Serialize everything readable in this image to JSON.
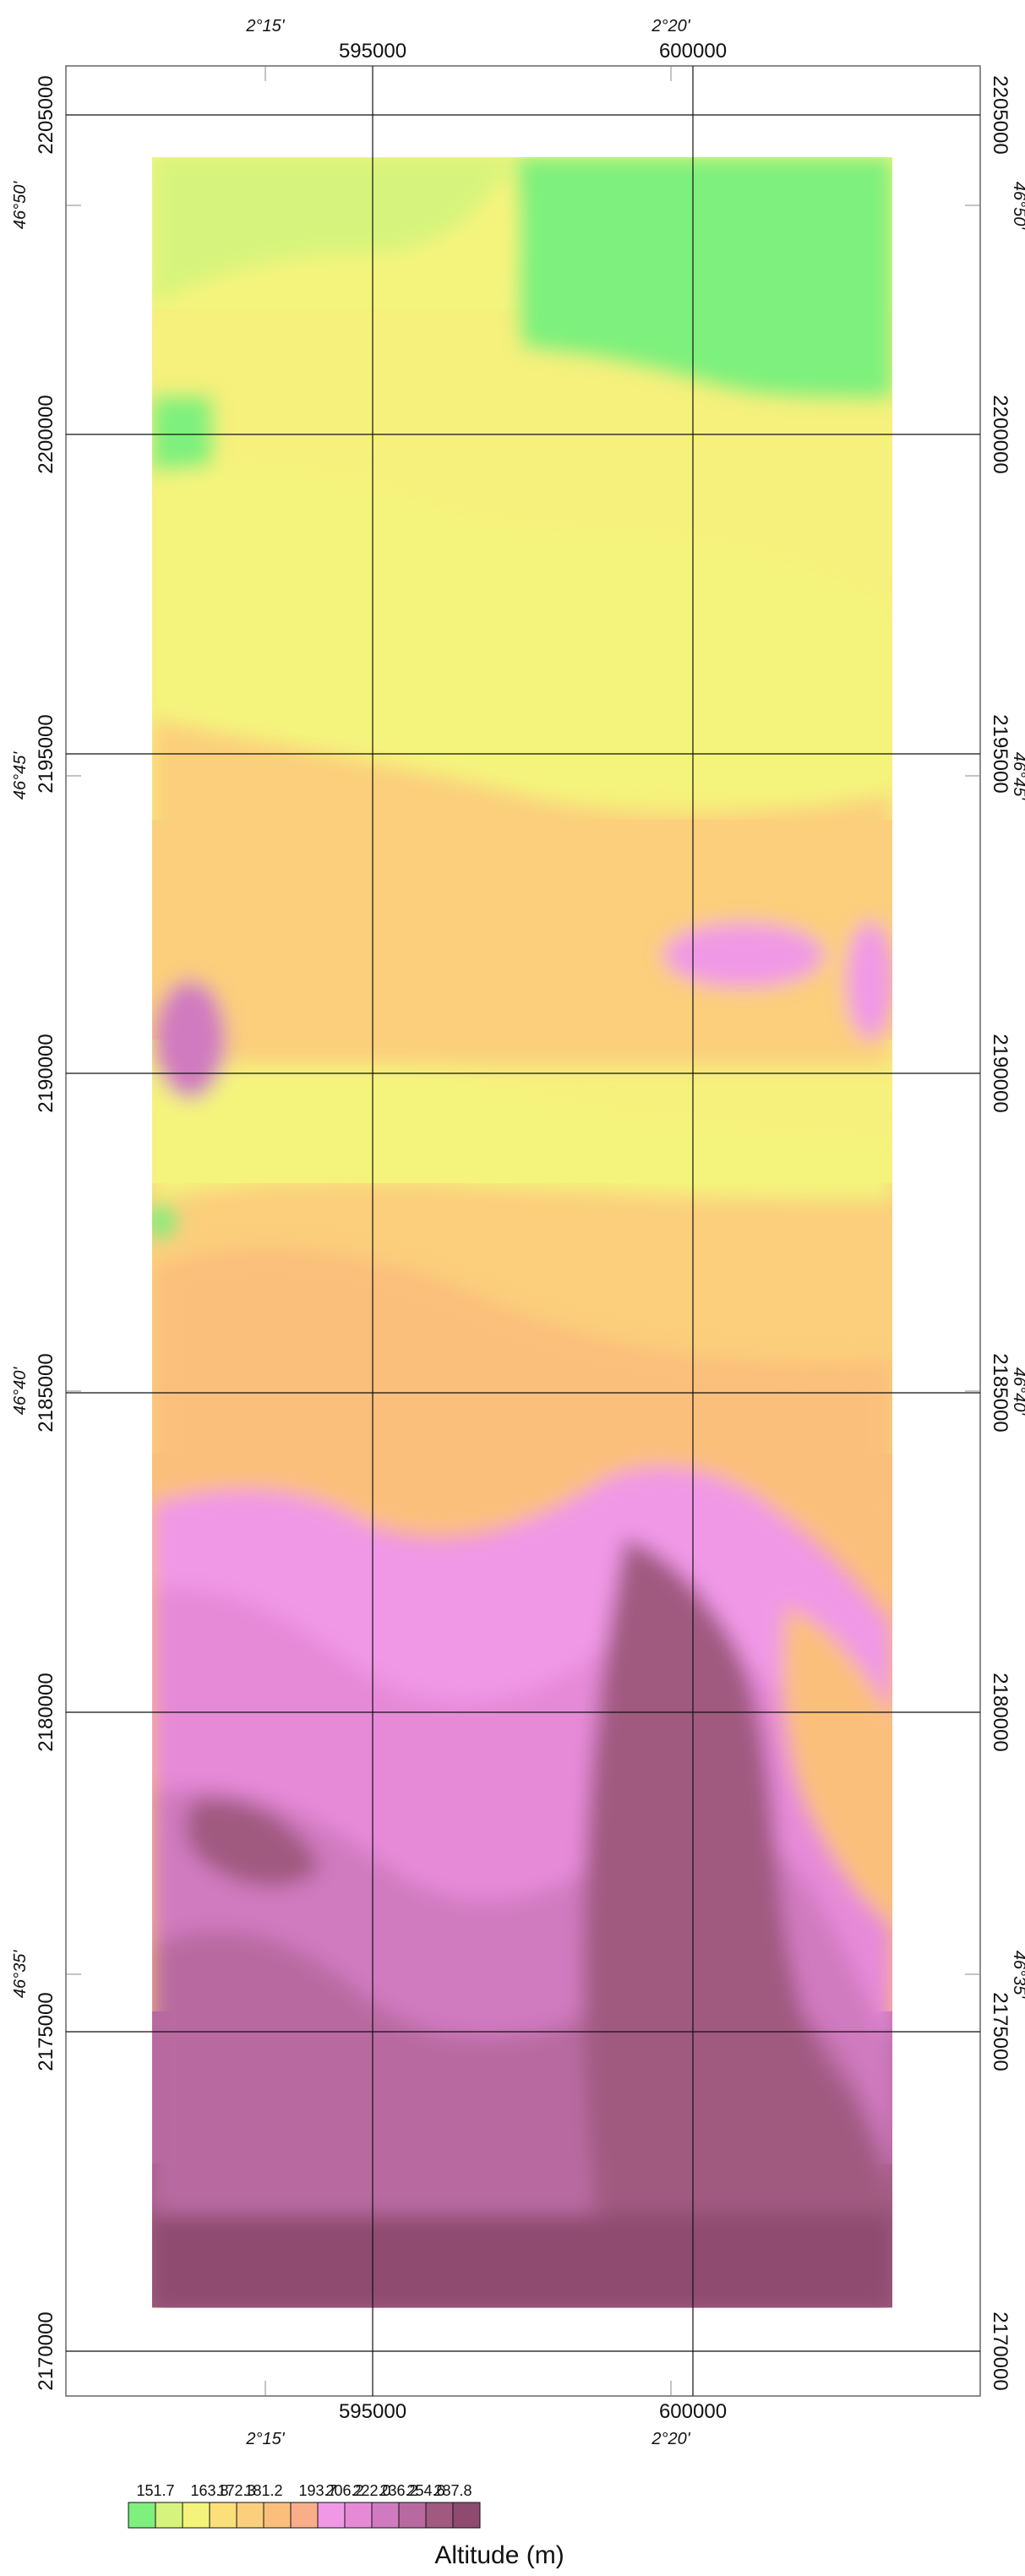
{
  "map": {
    "x_labels": {
      "top": [
        "595000",
        "600000"
      ],
      "bottom": [
        "595000",
        "600000"
      ]
    },
    "y_labels": [
      "2205000",
      "2200000",
      "2195000",
      "2190000",
      "2185000",
      "2180000",
      "2175000",
      "2170000"
    ],
    "longitude_labels": [
      "2°15'",
      "2°20'"
    ],
    "latitude_labels": [
      "46°50'",
      "46°45'",
      "46°40'",
      "46°35'"
    ]
  },
  "legend": {
    "title": "Altitude (m)",
    "tick_labels": [
      "151.7",
      "163.8",
      "172.3",
      "181.2",
      "193.7",
      "206.2",
      "222.0",
      "236.2",
      "254.6",
      "287.8"
    ],
    "colors": [
      "#7df07d",
      "#d6f47d",
      "#f4f47d",
      "#fbe07a",
      "#fbcf7c",
      "#fbbf7c",
      "#f9ae8a",
      "#f098e6",
      "#e68ad8",
      "#d07ac0",
      "#b86aa0",
      "#a05a80",
      "#8f4b6f"
    ]
  }
}
